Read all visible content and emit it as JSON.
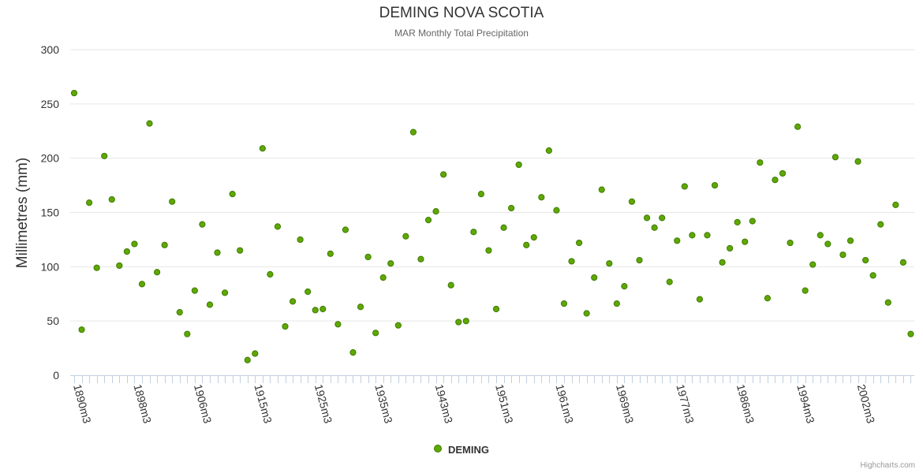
{
  "header": {
    "title": "DEMING NOVA SCOTIA",
    "subtitle": "MAR Monthly Total Precipitation"
  },
  "legend": {
    "label": "DEMING"
  },
  "credits": {
    "text": "Highcharts.com"
  },
  "colors": {
    "point_fill": "#5fa800",
    "point_stroke": "#3d7a00",
    "grid": "#e6e6e6",
    "axis": "#c0d0e0"
  },
  "chart_data": {
    "type": "scatter",
    "title": "DEMING NOVA SCOTIA",
    "subtitle": "MAR Monthly Total Precipitation",
    "xlabel": "",
    "ylabel": "Millimetres (mm)",
    "ylim": [
      0,
      300
    ],
    "yticks": [
      0,
      50,
      100,
      150,
      200,
      250,
      300
    ],
    "grid": true,
    "legend_position": "bottom-center",
    "x_tick_labels": [
      {
        "index": 0,
        "label": "1890m3"
      },
      {
        "index": 8,
        "label": "1898m3"
      },
      {
        "index": 16,
        "label": "1906m3"
      },
      {
        "index": 24,
        "label": "1915m3"
      },
      {
        "index": 32,
        "label": "1925m3"
      },
      {
        "index": 40,
        "label": "1935m3"
      },
      {
        "index": 48,
        "label": "1943m3"
      },
      {
        "index": 56,
        "label": "1951m3"
      },
      {
        "index": 64,
        "label": "1961m3"
      },
      {
        "index": 72,
        "label": "1969m3"
      },
      {
        "index": 80,
        "label": "1977m3"
      },
      {
        "index": 88,
        "label": "1986m3"
      },
      {
        "index": 96,
        "label": "1994m3"
      },
      {
        "index": 104,
        "label": "2002m3"
      }
    ],
    "series": [
      {
        "name": "DEMING",
        "values": [
          260,
          42,
          159,
          99,
          202,
          162,
          101,
          114,
          121,
          84,
          232,
          95,
          120,
          160,
          58,
          38,
          78,
          139,
          65,
          113,
          76,
          167,
          115,
          14,
          20,
          209,
          93,
          137,
          45,
          68,
          125,
          77,
          60,
          61,
          112,
          47,
          134,
          21,
          63,
          109,
          39,
          90,
          103,
          46,
          128,
          224,
          107,
          143,
          151,
          185,
          83,
          49,
          50,
          132,
          167,
          115,
          61,
          136,
          154,
          194,
          120,
          127,
          164,
          207,
          152,
          66,
          105,
          122,
          57,
          90,
          171,
          103,
          66,
          82,
          160,
          106,
          145,
          136,
          145,
          86,
          124,
          174,
          129,
          70,
          129,
          175,
          104,
          117,
          141,
          123,
          142,
          196,
          71,
          180,
          186,
          122,
          229,
          78,
          102,
          129,
          121,
          201,
          111,
          124,
          197,
          106,
          92,
          139,
          67,
          157,
          104,
          38
        ]
      }
    ]
  }
}
